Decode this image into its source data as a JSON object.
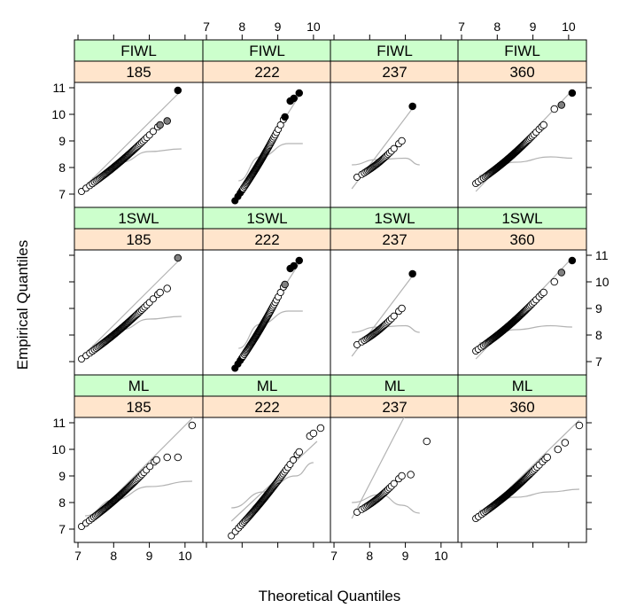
{
  "chart_data": {
    "type": "scatter",
    "subtype": "qq-plot-trellis",
    "xlabel": "Theoretical Quantiles",
    "ylabel": "Empirical Quantiles",
    "xlim": [
      6.9,
      10.5
    ],
    "ylim": [
      6.5,
      11.2
    ],
    "xticks": [
      7,
      8,
      9,
      10
    ],
    "yticks": [
      7,
      8,
      9,
      10,
      11
    ],
    "strip_colors": {
      "method": "#ccffcc",
      "group": "#ffe5cc"
    },
    "point_colors": {
      "fill": "#ffffff",
      "dark": "#000000",
      "mid": "#808080"
    },
    "curve_color": "#b3b3b3",
    "columns": [
      "185",
      "222",
      "237",
      "360"
    ],
    "rows": [
      "FIWL",
      "1SWL",
      "ML"
    ],
    "panels": [
      {
        "method": "FIWL",
        "group": "185",
        "n": 70,
        "qmin": [
          7.1,
          7.1
        ],
        "qmax": [
          9.8,
          10.9
        ],
        "tail": [
          [
            9.3,
            9.6
          ],
          [
            9.5,
            9.75
          ],
          [
            9.8,
            10.9
          ]
        ],
        "tail_fill": [
          "mid",
          "mid",
          "dark"
        ],
        "ref_line": [
          [
            7.2,
            7.3
          ],
          [
            9.9,
            10.9
          ]
        ],
        "fit_curve": [
          [
            7.4,
            7.6
          ],
          [
            8.2,
            8.2
          ],
          [
            9.0,
            8.6
          ],
          [
            9.9,
            8.7
          ]
        ]
      },
      {
        "method": "FIWL",
        "group": "222",
        "n": 70,
        "qmin": [
          7.8,
          6.75
        ],
        "qmax": [
          9.6,
          10.8
        ],
        "tail": [
          [
            9.2,
            9.9
          ],
          [
            9.35,
            10.5
          ],
          [
            9.45,
            10.6
          ],
          [
            9.6,
            10.8
          ]
        ],
        "tail_fill": [
          "dark",
          "dark",
          "dark",
          "dark"
        ],
        "ref_line": [
          [
            7.8,
            6.9
          ],
          [
            9.6,
            10.7
          ]
        ],
        "fit_curve": [
          [
            7.9,
            7.5
          ],
          [
            8.5,
            8.4
          ],
          [
            9.3,
            8.9
          ],
          [
            9.7,
            8.9
          ]
        ]
      },
      {
        "method": "FIWL",
        "group": "237",
        "n": 30,
        "qmin": [
          7.6,
          7.6
        ],
        "qmax": [
          9.2,
          10.3
        ],
        "tail": [
          [
            8.9,
            9.0
          ],
          [
            9.2,
            10.3
          ]
        ],
        "tail_fill": [
          "fill",
          "dark"
        ],
        "ref_line": [
          [
            7.5,
            7.2
          ],
          [
            9.3,
            10.4
          ]
        ],
        "fit_curve": [
          [
            7.5,
            8.1
          ],
          [
            8.2,
            8.3
          ],
          [
            9.0,
            8.35
          ],
          [
            9.4,
            8.1
          ]
        ]
      },
      {
        "method": "FIWL",
        "group": "360",
        "n": 90,
        "qmin": [
          7.4,
          7.4
        ],
        "qmax": [
          10.1,
          10.8
        ],
        "tail": [
          [
            9.3,
            9.6
          ],
          [
            9.6,
            10.2
          ],
          [
            9.8,
            10.35
          ],
          [
            10.1,
            10.8
          ]
        ],
        "tail_fill": [
          "fill",
          "fill",
          "mid",
          "dark"
        ],
        "ref_line": [
          [
            7.4,
            7.1
          ],
          [
            10.1,
            10.9
          ]
        ],
        "fit_curve": [
          [
            7.5,
            7.7
          ],
          [
            8.5,
            8.2
          ],
          [
            9.5,
            8.4
          ],
          [
            10.1,
            8.35
          ]
        ]
      },
      {
        "method": "1SWL",
        "group": "185",
        "n": 70,
        "qmin": [
          7.1,
          7.1
        ],
        "qmax": [
          9.8,
          10.9
        ],
        "tail": [
          [
            9.3,
            9.6
          ],
          [
            9.5,
            9.75
          ],
          [
            9.8,
            10.9
          ]
        ],
        "tail_fill": [
          "fill",
          "fill",
          "mid"
        ],
        "ref_line": [
          [
            7.2,
            7.3
          ],
          [
            9.9,
            10.9
          ]
        ],
        "fit_curve": [
          [
            7.4,
            7.6
          ],
          [
            8.2,
            8.2
          ],
          [
            9.0,
            8.6
          ],
          [
            9.9,
            8.7
          ]
        ]
      },
      {
        "method": "1SWL",
        "group": "222",
        "n": 70,
        "qmin": [
          7.8,
          6.75
        ],
        "qmax": [
          9.6,
          10.8
        ],
        "tail": [
          [
            9.2,
            9.9
          ],
          [
            9.35,
            10.5
          ],
          [
            9.45,
            10.6
          ],
          [
            9.6,
            10.8
          ]
        ],
        "tail_fill": [
          "mid",
          "dark",
          "dark",
          "dark"
        ],
        "ref_line": [
          [
            7.8,
            6.9
          ],
          [
            9.6,
            10.7
          ]
        ],
        "fit_curve": [
          [
            7.9,
            7.5
          ],
          [
            8.5,
            8.4
          ],
          [
            9.3,
            8.9
          ],
          [
            9.7,
            8.9
          ]
        ]
      },
      {
        "method": "1SWL",
        "group": "237",
        "n": 30,
        "qmin": [
          7.6,
          7.6
        ],
        "qmax": [
          9.2,
          10.3
        ],
        "tail": [
          [
            8.9,
            9.0
          ],
          [
            9.2,
            10.3
          ]
        ],
        "tail_fill": [
          "fill",
          "dark"
        ],
        "ref_line": [
          [
            7.5,
            7.2
          ],
          [
            9.3,
            10.4
          ]
        ],
        "fit_curve": [
          [
            7.5,
            8.1
          ],
          [
            8.2,
            8.3
          ],
          [
            9.0,
            8.35
          ],
          [
            9.4,
            8.1
          ]
        ]
      },
      {
        "method": "1SWL",
        "group": "360",
        "n": 90,
        "qmin": [
          7.4,
          7.4
        ],
        "qmax": [
          10.1,
          10.8
        ],
        "tail": [
          [
            9.3,
            9.6
          ],
          [
            9.6,
            10.0
          ],
          [
            9.8,
            10.35
          ],
          [
            10.1,
            10.8
          ]
        ],
        "tail_fill": [
          "fill",
          "fill",
          "mid",
          "dark"
        ],
        "ref_line": [
          [
            7.4,
            7.1
          ],
          [
            10.1,
            10.9
          ]
        ],
        "fit_curve": [
          [
            7.5,
            7.7
          ],
          [
            8.5,
            8.2
          ],
          [
            9.5,
            8.35
          ],
          [
            10.1,
            8.3
          ]
        ]
      },
      {
        "method": "ML",
        "group": "185",
        "n": 70,
        "qmin": [
          7.1,
          7.1
        ],
        "qmax": [
          10.2,
          10.9
        ],
        "tail": [
          [
            9.2,
            9.6
          ],
          [
            9.5,
            9.7
          ],
          [
            9.8,
            9.7
          ],
          [
            10.2,
            10.9
          ]
        ],
        "tail_fill": [
          "fill",
          "fill",
          "fill",
          "fill"
        ],
        "ref_line": [
          [
            7.1,
            7.0
          ],
          [
            10.3,
            11.3
          ]
        ],
        "fit_curve": [
          [
            7.2,
            7.5
          ],
          [
            8.0,
            8.1
          ],
          [
            9.0,
            8.6
          ],
          [
            10.2,
            8.8
          ]
        ]
      },
      {
        "method": "ML",
        "group": "222",
        "n": 70,
        "qmin": [
          7.7,
          6.75
        ],
        "qmax": [
          10.2,
          10.8
        ],
        "tail": [
          [
            9.6,
            9.9
          ],
          [
            9.9,
            10.5
          ],
          [
            10.0,
            10.6
          ],
          [
            10.2,
            10.8
          ]
        ],
        "tail_fill": [
          "fill",
          "fill",
          "fill",
          "fill"
        ],
        "ref_line": [
          [
            7.7,
            7.3
          ],
          [
            10.1,
            10.3
          ]
        ],
        "fit_curve": [
          [
            7.7,
            7.8
          ],
          [
            8.6,
            8.4
          ],
          [
            9.5,
            9.0
          ],
          [
            10.0,
            9.5
          ]
        ]
      },
      {
        "method": "ML",
        "group": "237",
        "n": 30,
        "qmin": [
          7.6,
          7.6
        ],
        "qmax": [
          9.6,
          10.3
        ],
        "tail": [
          [
            8.9,
            9.0
          ],
          [
            9.15,
            9.05
          ],
          [
            9.6,
            10.3
          ]
        ],
        "tail_fill": [
          "fill",
          "fill",
          "fill"
        ],
        "ref_line": [
          [
            7.5,
            7.4
          ],
          [
            9.0,
            11.3
          ]
        ],
        "fit_curve": [
          [
            7.5,
            8.0
          ],
          [
            8.3,
            8.3
          ],
          [
            8.9,
            7.9
          ],
          [
            9.4,
            7.6
          ]
        ]
      },
      {
        "method": "ML",
        "group": "360",
        "n": 90,
        "qmin": [
          7.4,
          7.4
        ],
        "qmax": [
          10.3,
          10.9
        ],
        "tail": [
          [
            9.4,
            9.7
          ],
          [
            9.7,
            10.0
          ],
          [
            9.9,
            10.25
          ],
          [
            10.3,
            10.9
          ]
        ],
        "tail_fill": [
          "fill",
          "fill",
          "fill",
          "fill"
        ],
        "ref_line": [
          [
            7.4,
            7.3
          ],
          [
            10.3,
            11.1
          ]
        ],
        "fit_curve": [
          [
            7.5,
            7.7
          ],
          [
            8.5,
            8.2
          ],
          [
            9.5,
            8.4
          ],
          [
            10.3,
            8.5
          ]
        ]
      }
    ]
  }
}
